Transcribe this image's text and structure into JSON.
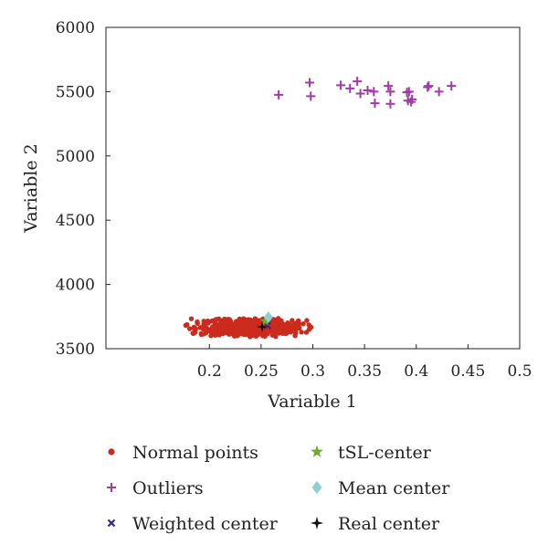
{
  "chart_data": {
    "type": "scatter",
    "xlabel": "Variable 1",
    "ylabel": "Variable 2",
    "xlim": [
      0.1,
      0.5
    ],
    "ylim": [
      3500,
      6000
    ],
    "xticks": [
      "0.2",
      "0.25",
      "0.3",
      "0.35",
      "0.4",
      "0.45",
      "0.5"
    ],
    "xtick_values": [
      0.2,
      0.25,
      0.3,
      0.35,
      0.4,
      0.45,
      0.5
    ],
    "yticks": [
      "3500",
      "4000",
      "4500",
      "5000",
      "5500",
      "6000"
    ],
    "ytick_values": [
      3500,
      4000,
      4500,
      5000,
      5500,
      6000
    ],
    "grid": false,
    "legend_placement": "bottom",
    "series": [
      {
        "name": "Normal points",
        "marker": "dot",
        "color": "#cc2a1c",
        "cluster": {
          "x_min": 0.17,
          "x_max": 0.31,
          "y_min": 3590,
          "y_max": 3740,
          "count": 600
        }
      },
      {
        "name": "Outliers",
        "marker": "plus",
        "color": "#a23aa6",
        "points": [
          [
            0.267,
            5475
          ],
          [
            0.297,
            5570
          ],
          [
            0.298,
            5465
          ],
          [
            0.327,
            5550
          ],
          [
            0.336,
            5525
          ],
          [
            0.343,
            5580
          ],
          [
            0.346,
            5485
          ],
          [
            0.353,
            5510
          ],
          [
            0.359,
            5500
          ],
          [
            0.36,
            5410
          ],
          [
            0.373,
            5545
          ],
          [
            0.375,
            5500
          ],
          [
            0.375,
            5405
          ],
          [
            0.391,
            5495
          ],
          [
            0.392,
            5430
          ],
          [
            0.393,
            5500
          ],
          [
            0.395,
            5420
          ],
          [
            0.396,
            5440
          ],
          [
            0.411,
            5535
          ],
          [
            0.412,
            5545
          ],
          [
            0.422,
            5500
          ],
          [
            0.434,
            5545
          ]
        ]
      },
      {
        "name": "Weighted center",
        "marker": "x",
        "color": "#2b2a8f",
        "points": [
          [
            0.256,
            3680
          ]
        ]
      },
      {
        "name": "tSL-center",
        "marker": "star",
        "color": "#6aad2e",
        "points": [
          [
            0.254,
            3715
          ]
        ]
      },
      {
        "name": "Mean center",
        "marker": "diamond",
        "color": "#8fcfcf",
        "points": [
          [
            0.257,
            3745
          ]
        ]
      },
      {
        "name": "Real center",
        "marker": "star4",
        "color": "#111111",
        "points": [
          [
            0.251,
            3670
          ]
        ]
      }
    ]
  }
}
